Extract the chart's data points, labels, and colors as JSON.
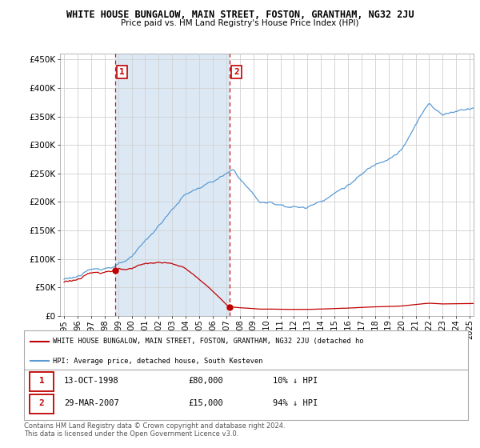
{
  "title": "WHITE HOUSE BUNGALOW, MAIN STREET, FOSTON, GRANTHAM, NG32 2JU",
  "subtitle": "Price paid vs. HM Land Registry's House Price Index (HPI)",
  "legend_line1": "WHITE HOUSE BUNGALOW, MAIN STREET, FOSTON, GRANTHAM, NG32 2JU (detached ho",
  "legend_line2": "HPI: Average price, detached house, South Kesteven",
  "footer1": "Contains HM Land Registry data © Crown copyright and database right 2024.",
  "footer2": "This data is licensed under the Open Government Licence v3.0.",
  "table": [
    {
      "num": "1",
      "date": "13-OCT-1998",
      "price": "£80,000",
      "pct": "10% ↓ HPI"
    },
    {
      "num": "2",
      "date": "29-MAR-2007",
      "price": "£15,000",
      "pct": "94% ↓ HPI"
    }
  ],
  "ylim": [
    0,
    460000
  ],
  "yticks": [
    0,
    50000,
    100000,
    150000,
    200000,
    250000,
    300000,
    350000,
    400000,
    450000
  ],
  "ytick_labels": [
    "£0",
    "£50K",
    "£100K",
    "£150K",
    "£200K",
    "£250K",
    "£300K",
    "£350K",
    "£400K",
    "£450K"
  ],
  "hpi_color": "#5b9bd5",
  "sale_color": "#c00000",
  "vline_color": "#c00000",
  "shade_color": "#dce9f5",
  "background_color": "#ffffff",
  "grid_color": "#d0d0d0",
  "sale1_x": 1998.79,
  "sale1_y": 80000,
  "sale2_x": 2007.24,
  "sale2_y": 15000,
  "xlim_left": 1994.7,
  "xlim_right": 2025.3
}
